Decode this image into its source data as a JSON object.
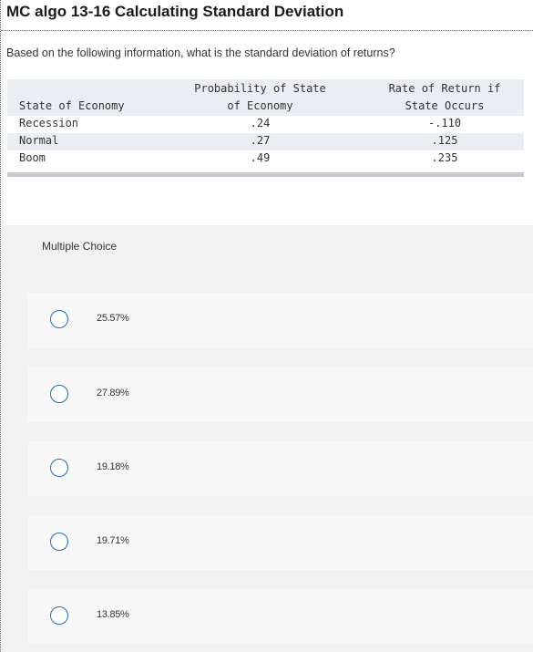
{
  "question": {
    "title": "MC algo 13-16 Calculating Standard Deviation",
    "prompt": "Based on the following information, what is the standard deviation of returns?"
  },
  "table": {
    "headers": {
      "state": "State of Economy",
      "probability_line1": "Probability of State",
      "probability_line2": "of Economy",
      "return_line1": "Rate of Return if",
      "return_line2": "State Occurs"
    },
    "rows": [
      {
        "state": "Recession",
        "probability": ".24",
        "rate": "-.110"
      },
      {
        "state": "Normal",
        "probability": ".27",
        "rate": ".125"
      },
      {
        "state": "Boom",
        "probability": ".49",
        "rate": ".235"
      }
    ]
  },
  "multiple_choice": {
    "label": "Multiple Choice",
    "options": [
      {
        "text": "25.57%"
      },
      {
        "text": "27.89%"
      },
      {
        "text": "19.18%"
      },
      {
        "text": "19.71%"
      },
      {
        "text": "13.85%"
      }
    ]
  },
  "colors": {
    "radio_border": "#1f6ec2",
    "table_header_bg": "#eaedf2",
    "table_bottom_rule": "#c3cbd7",
    "panel_bg": "#f2f2f2",
    "choice_bg": "#f8f8f8"
  }
}
